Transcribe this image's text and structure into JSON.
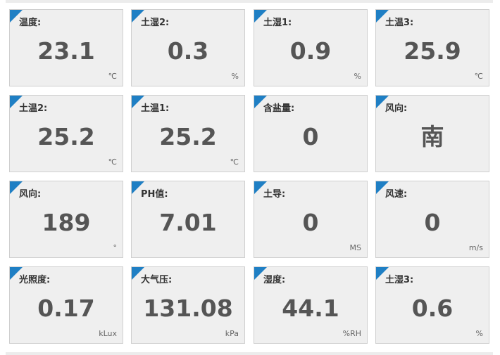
{
  "colors": {
    "accent": "#1f7fc4",
    "card_bg": "#efefef",
    "card_border": "#cfcfcf",
    "value_text": "#555555"
  },
  "cards": [
    {
      "label": "温度:",
      "value": "23.1",
      "unit": "℃"
    },
    {
      "label": "土湿2:",
      "value": "0.3",
      "unit": "%"
    },
    {
      "label": "土湿1:",
      "value": "0.9",
      "unit": "%"
    },
    {
      "label": "土温3:",
      "value": "25.9",
      "unit": "℃"
    },
    {
      "label": "土温2:",
      "value": "25.2",
      "unit": "℃"
    },
    {
      "label": "土温1:",
      "value": "25.2",
      "unit": "℃"
    },
    {
      "label": "含盐量:",
      "value": "0",
      "unit": ""
    },
    {
      "label": "风向:",
      "value": "南",
      "unit": ""
    },
    {
      "label": "风向:",
      "value": "189",
      "unit": "°"
    },
    {
      "label": "PH值:",
      "value": "7.01",
      "unit": ""
    },
    {
      "label": "土导:",
      "value": "0",
      "unit": "MS"
    },
    {
      "label": "风速:",
      "value": "0",
      "unit": "m/s"
    },
    {
      "label": "光照度:",
      "value": "0.17",
      "unit": "kLux"
    },
    {
      "label": "大气压:",
      "value": "131.08",
      "unit": "kPa"
    },
    {
      "label": "湿度:",
      "value": "44.1",
      "unit": "%RH"
    },
    {
      "label": "土湿3:",
      "value": "0.6",
      "unit": "%"
    }
  ]
}
